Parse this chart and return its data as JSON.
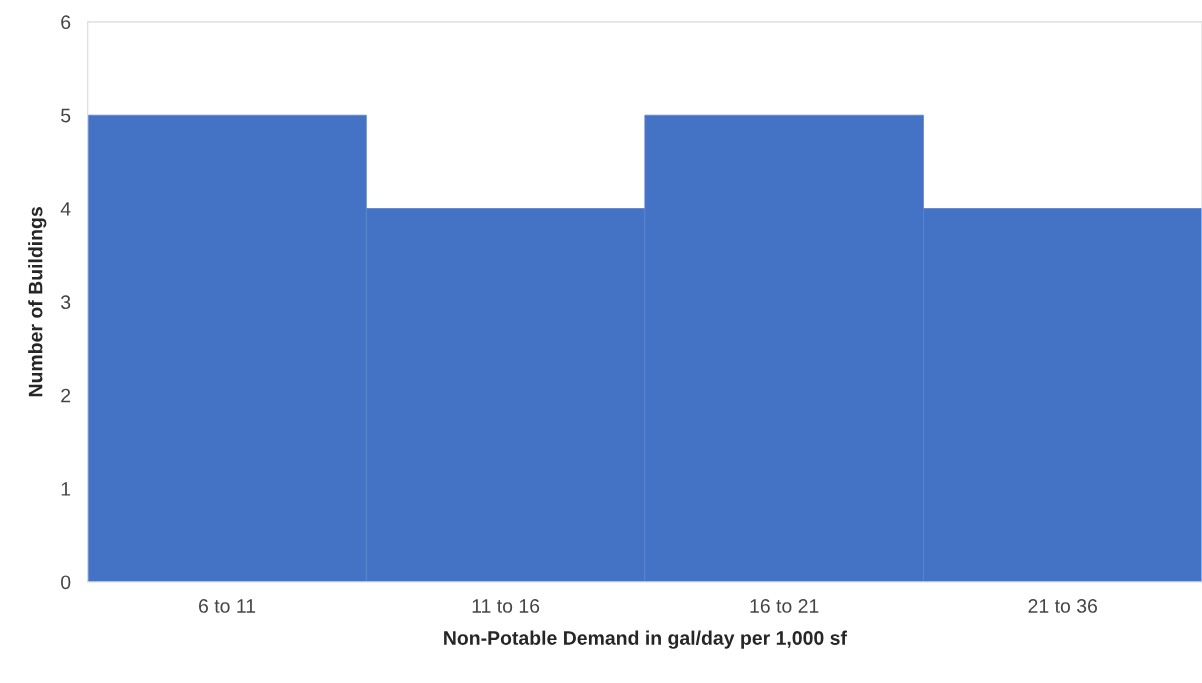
{
  "chart_data": {
    "type": "bar",
    "xlabel": "Non-Potable Demand in gal/day per 1,000 sf",
    "ylabel": "Number of Buildings",
    "categories": [
      "6 to 11",
      "11 to 16",
      "16 to 21",
      "21 to 36"
    ],
    "values": [
      5,
      4,
      5,
      4
    ],
    "color": "#4472c4",
    "ylim": [
      0,
      6
    ],
    "yticks": [
      0,
      1,
      2,
      3,
      4,
      5,
      6
    ],
    "grid": false,
    "legend": false
  }
}
